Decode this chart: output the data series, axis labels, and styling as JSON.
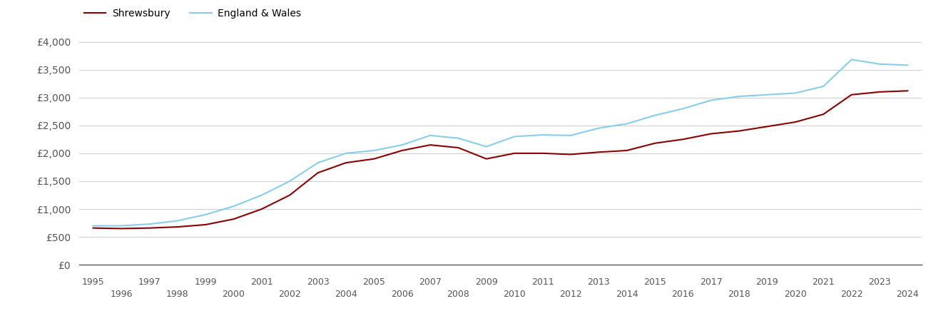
{
  "shrewsbury": {
    "years": [
      1995,
      1996,
      1997,
      1998,
      1999,
      2000,
      2001,
      2002,
      2003,
      2004,
      2005,
      2006,
      2007,
      2008,
      2009,
      2010,
      2011,
      2012,
      2013,
      2014,
      2015,
      2016,
      2017,
      2018,
      2019,
      2020,
      2021,
      2022,
      2023,
      2024
    ],
    "values": [
      660,
      650,
      660,
      680,
      720,
      820,
      1000,
      1250,
      1650,
      1830,
      1900,
      2050,
      2150,
      2100,
      1900,
      2000,
      2000,
      1980,
      2020,
      2050,
      2180,
      2250,
      2350,
      2400,
      2480,
      2560,
      2700,
      3050,
      3100,
      3120
    ]
  },
  "england_wales": {
    "years": [
      1995,
      1996,
      1997,
      1998,
      1999,
      2000,
      2001,
      2002,
      2003,
      2004,
      2005,
      2006,
      2007,
      2008,
      2009,
      2010,
      2011,
      2012,
      2013,
      2014,
      2015,
      2016,
      2017,
      2018,
      2019,
      2020,
      2021,
      2022,
      2023,
      2024
    ],
    "values": [
      700,
      700,
      730,
      790,
      900,
      1050,
      1250,
      1500,
      1830,
      2000,
      2050,
      2150,
      2320,
      2270,
      2120,
      2300,
      2330,
      2320,
      2450,
      2530,
      2680,
      2800,
      2950,
      3020,
      3050,
      3080,
      3200,
      3680,
      3600,
      3580
    ]
  },
  "shrewsbury_color": "#8B0000",
  "england_wales_color": "#87CEEB",
  "background_color": "#ffffff",
  "grid_color": "#cccccc",
  "ylim": [
    0,
    4000
  ],
  "yticks": [
    0,
    500,
    1000,
    1500,
    2000,
    2500,
    3000,
    3500,
    4000
  ],
  "legend_labels": [
    "Shrewsbury",
    "England & Wales"
  ],
  "line_width": 1.5,
  "xlim": [
    1994.5,
    2024.5
  ],
  "odd_years": [
    1995,
    1997,
    1999,
    2001,
    2003,
    2005,
    2007,
    2009,
    2011,
    2013,
    2015,
    2017,
    2019,
    2021,
    2023
  ],
  "even_years": [
    1996,
    1998,
    2000,
    2002,
    2004,
    2006,
    2008,
    2010,
    2012,
    2014,
    2016,
    2018,
    2020,
    2022,
    2024
  ]
}
